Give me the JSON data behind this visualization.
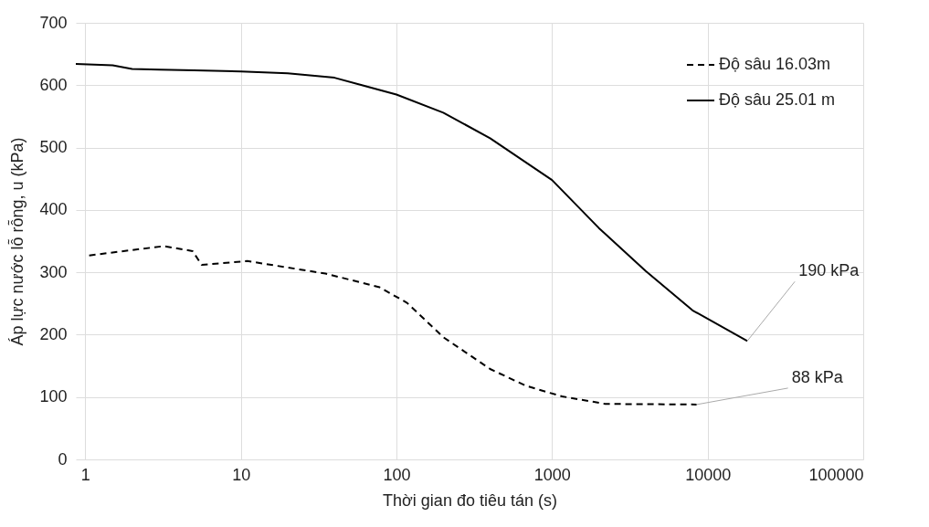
{
  "chart_data": {
    "type": "line",
    "xlabel": "Thời gian đo tiêu tán (s)",
    "ylabel": "Áp lực nước lỗ rỗng, u (kPa)",
    "log": "x",
    "xlim": [
      0.87,
      100000
    ],
    "xticks": [
      1,
      10,
      100,
      1000,
      10000,
      100000
    ],
    "ylim": [
      0,
      700
    ],
    "yticks": [
      0,
      100,
      200,
      300,
      400,
      500,
      600,
      700
    ],
    "grid": true,
    "legend": "top right",
    "series": [
      {
        "name": "Độ sâu 16.03m",
        "color": "#000000",
        "line_style": "dashed",
        "x": [
          1.06,
          3.2,
          4.9,
          5.6,
          11,
          35,
          78,
          117,
          200,
          400,
          680,
          1160,
          2200,
          8500
        ],
        "values": [
          327,
          342,
          334,
          312,
          318,
          298,
          276,
          251,
          196,
          145,
          118,
          101,
          89,
          88
        ]
      },
      {
        "name": "Độ sâu 25.01 m",
        "color": "#000000",
        "line_style": "solid",
        "x": [
          0.87,
          1.5,
          2,
          3,
          5,
          10,
          20,
          40,
          60,
          100,
          200,
          400,
          1000,
          2000,
          4000,
          8000,
          18000
        ],
        "values": [
          634,
          632,
          626,
          625,
          624,
          622,
          619,
          612,
          600,
          585,
          556,
          515,
          448,
          371,
          302,
          239,
          190
        ]
      }
    ],
    "annotations": [
      {
        "text": "190 kPa",
        "x": 18000,
        "y": 190
      },
      {
        "text": "88 kPa",
        "x": 8500,
        "y": 88
      }
    ]
  }
}
